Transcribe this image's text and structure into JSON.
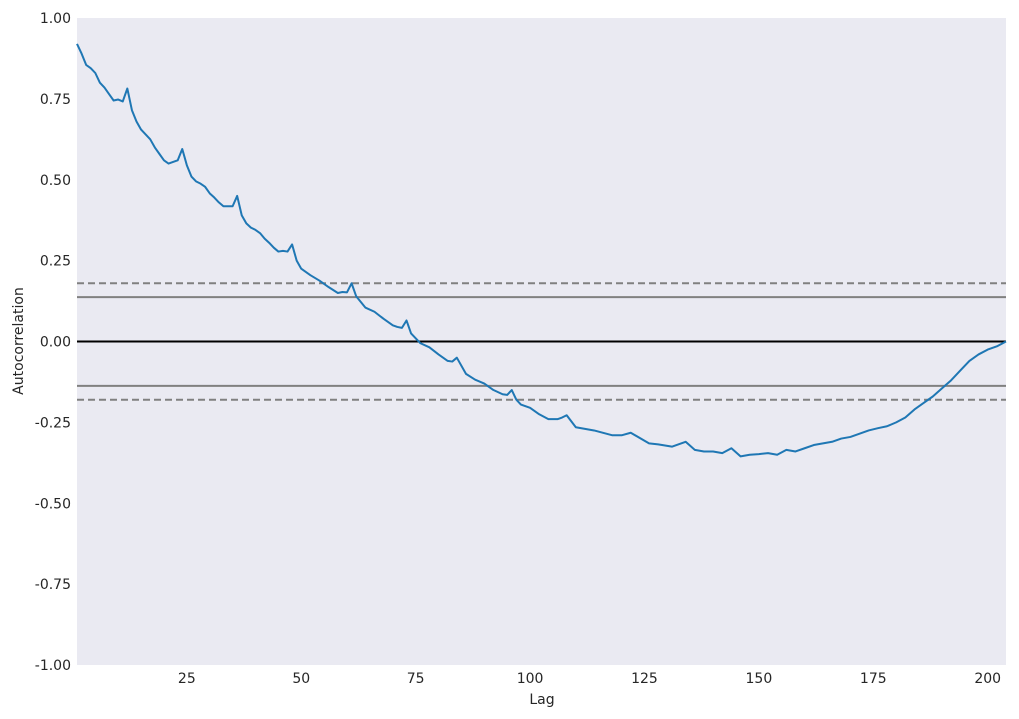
{
  "chart_data": {
    "type": "line",
    "title": "",
    "xlabel": "Lag",
    "ylabel": "Autocorrelation",
    "xlim": [
      1,
      204
    ],
    "ylim": [
      -1.0,
      1.0
    ],
    "xticks": [
      25,
      50,
      75,
      100,
      125,
      150,
      175,
      200
    ],
    "yticks": [
      -1.0,
      -0.75,
      -0.5,
      -0.25,
      0.0,
      0.25,
      0.5,
      0.75,
      1.0
    ],
    "ytick_labels": [
      "-1.00",
      "-0.75",
      "-0.50",
      "-0.25",
      "0.00",
      "0.25",
      "0.50",
      "0.75",
      "1.00"
    ],
    "grid": false,
    "background_color": "#eaeaf2",
    "colors": {
      "series": "#1f77b4",
      "zero_line": "#000000",
      "conf_lines": "#808080"
    },
    "reference_lines": [
      {
        "kind": "zero",
        "y": 0.0,
        "style": "solid"
      },
      {
        "kind": "conf-95",
        "y": 0.137,
        "style": "solid"
      },
      {
        "kind": "conf-95",
        "y": -0.137,
        "style": "solid"
      },
      {
        "kind": "conf-99",
        "y": 0.18,
        "style": "dashed"
      },
      {
        "kind": "conf-99",
        "y": -0.18,
        "style": "dashed"
      }
    ],
    "series": [
      {
        "x": [
          1,
          2,
          3,
          4,
          5,
          6,
          7,
          8,
          9,
          10,
          11,
          12,
          13,
          14,
          15,
          16,
          17,
          18,
          19,
          20,
          21,
          22,
          23,
          24,
          25,
          26,
          27,
          28,
          29,
          30,
          31,
          32,
          33,
          34,
          35,
          36,
          37,
          38,
          39,
          40,
          41,
          42,
          43,
          44,
          45,
          46,
          47,
          48,
          49,
          50,
          52,
          54,
          56,
          58,
          59,
          60,
          61,
          62,
          64,
          66,
          68,
          70,
          71,
          72,
          73,
          74,
          76,
          78,
          80,
          82,
          83,
          84,
          86,
          88,
          90,
          92,
          94,
          95,
          96,
          97,
          98,
          100,
          102,
          104,
          106,
          107,
          108,
          110,
          114,
          118,
          120,
          122,
          126,
          128,
          131,
          132,
          134,
          136,
          138,
          140,
          142,
          144,
          146,
          148,
          150,
          152,
          154,
          156,
          158,
          160,
          162,
          164,
          166,
          168,
          170,
          172,
          174,
          176,
          178,
          180,
          182,
          184,
          186,
          188,
          190,
          192,
          194,
          196,
          198,
          200,
          202,
          204
        ],
        "values": [
          0.92,
          0.89,
          0.855,
          0.845,
          0.83,
          0.8,
          0.785,
          0.765,
          0.745,
          0.748,
          0.742,
          0.782,
          0.715,
          0.68,
          0.655,
          0.64,
          0.625,
          0.6,
          0.58,
          0.56,
          0.55,
          0.555,
          0.56,
          0.595,
          0.545,
          0.51,
          0.495,
          0.488,
          0.478,
          0.458,
          0.445,
          0.43,
          0.418,
          0.418,
          0.418,
          0.45,
          0.39,
          0.365,
          0.352,
          0.345,
          0.335,
          0.318,
          0.305,
          0.29,
          0.278,
          0.28,
          0.278,
          0.3,
          0.25,
          0.225,
          0.205,
          0.188,
          0.168,
          0.15,
          0.153,
          0.152,
          0.18,
          0.14,
          0.105,
          0.092,
          0.07,
          0.05,
          0.045,
          0.042,
          0.065,
          0.025,
          -0.005,
          -0.018,
          -0.04,
          -0.06,
          -0.062,
          -0.05,
          -0.1,
          -0.118,
          -0.13,
          -0.15,
          -0.163,
          -0.165,
          -0.15,
          -0.18,
          -0.195,
          -0.205,
          -0.225,
          -0.24,
          -0.24,
          -0.235,
          -0.228,
          -0.265,
          -0.275,
          -0.29,
          -0.29,
          -0.282,
          -0.315,
          -0.318,
          -0.325,
          -0.32,
          -0.31,
          -0.335,
          -0.34,
          -0.34,
          -0.345,
          -0.33,
          -0.355,
          -0.35,
          -0.348,
          -0.345,
          -0.35,
          -0.335,
          -0.34,
          -0.33,
          -0.32,
          -0.315,
          -0.31,
          -0.3,
          -0.295,
          -0.285,
          -0.275,
          -0.268,
          -0.262,
          -0.25,
          -0.235,
          -0.21,
          -0.19,
          -0.17,
          -0.145,
          -0.12,
          -0.09,
          -0.06,
          -0.04,
          -0.025,
          -0.015,
          0.0
        ]
      }
    ]
  }
}
